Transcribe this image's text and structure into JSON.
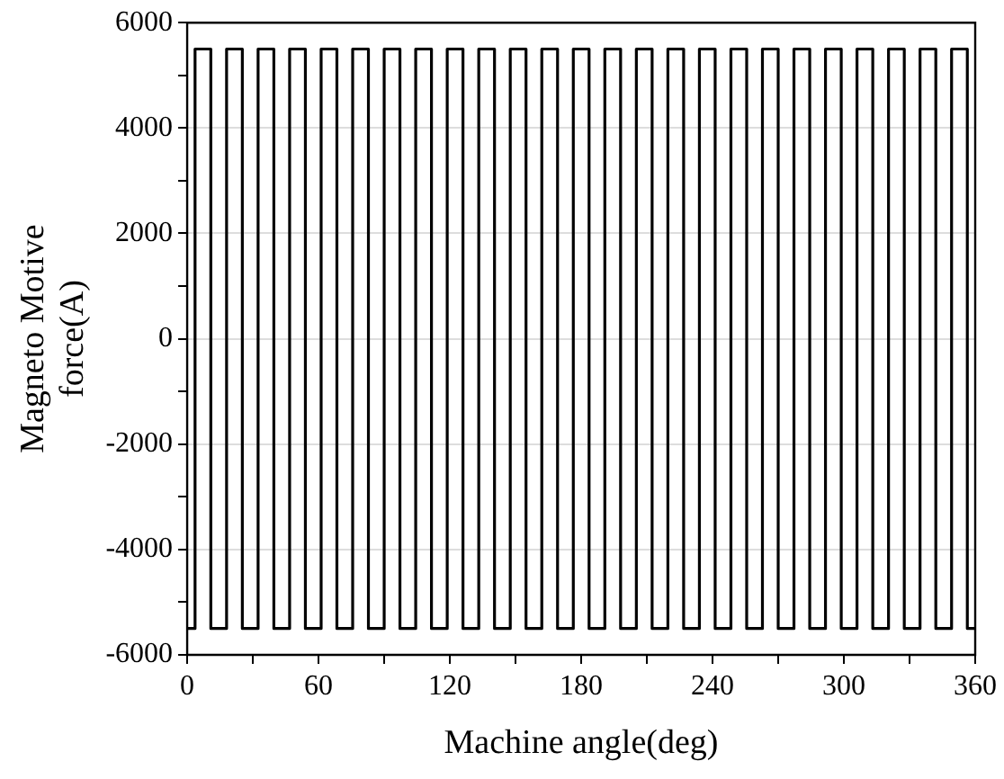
{
  "chart_data": {
    "type": "step",
    "xlabel": "Machine angle(deg)",
    "ylabel": "Magneto Motive force(A)",
    "x": [
      0,
      3.6,
      10.8,
      18,
      25.2,
      32.4,
      39.6,
      46.8,
      54,
      61.2,
      68.4,
      75.6,
      82.8,
      90,
      97.2,
      104.4,
      111.6,
      118.8,
      126,
      133.2,
      140.4,
      147.6,
      154.8,
      162,
      169.2,
      176.4,
      183.6,
      190.8,
      198,
      205.2,
      212.4,
      219.6,
      226.8,
      234,
      241.2,
      248.4,
      255.6,
      262.8,
      270,
      277.2,
      284.4,
      291.6,
      298.8,
      306,
      313.2,
      320.4,
      327.6,
      334.8,
      342,
      349.2,
      356.4,
      360
    ],
    "series": [
      {
        "color": "#000000",
        "values": [
          -5500,
          5500,
          -5500,
          5500,
          -5500,
          5500,
          -5500,
          5500,
          -5500,
          5500,
          -5500,
          5500,
          -5500,
          5500,
          -5500,
          5500,
          -5500,
          5500,
          -5500,
          5500,
          -5500,
          5500,
          -5500,
          5500,
          -5500,
          5500,
          -5500,
          5500,
          -5500,
          5500,
          -5500,
          5500,
          -5500,
          5500,
          -5500,
          5500,
          -5500,
          5500,
          -5500,
          5500,
          -5500,
          5500,
          -5500,
          5500,
          -5500,
          5500,
          -5500,
          5500,
          -5500,
          5500,
          -5500,
          -5500
        ]
      }
    ],
    "xlim": [
      0,
      360
    ],
    "xticks": [
      0,
      {
        "value": 30,
        "label": null
      },
      60,
      {
        "value": 90,
        "label": null
      },
      120,
      {
        "value": 150,
        "label": null
      },
      180,
      {
        "value": 210,
        "label": null
      },
      240,
      {
        "value": 270,
        "label": null
      },
      300,
      {
        "value": 330,
        "label": null
      },
      360
    ],
    "ylim": [
      -6000,
      6000
    ],
    "yticks": [
      -6000,
      {
        "value": -5000,
        "label": null
      },
      -4000,
      {
        "value": -3000,
        "label": null
      },
      -2000,
      {
        "value": -1000,
        "label": null
      },
      0,
      {
        "value": 1000,
        "label": null
      },
      2000,
      {
        "value": 3000,
        "label": null
      },
      4000,
      {
        "value": 5000,
        "label": null
      },
      6000
    ],
    "grid": "y",
    "marker": "none",
    "line_style": "solid"
  }
}
